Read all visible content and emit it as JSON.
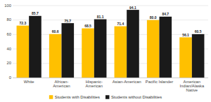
{
  "chart_data": {
    "type": "bar",
    "categories": [
      "White",
      "African-American",
      "Hispanic-American",
      "Asian-American",
      "Pacific Islander",
      "American\nIndian/Alaska\nNative"
    ],
    "series": [
      {
        "name": "Students with Disabilities",
        "color": "#FFC000",
        "values": [
          72.3,
          60.6,
          68.5,
          71.4,
          80.0,
          56.1
        ],
        "value_labels": [
          "72.3",
          "60.6",
          "68.5",
          "71.4",
          "80.0",
          "56.1"
        ]
      },
      {
        "name": "Students without Disabilities",
        "color": "#1A1A1A",
        "values": [
          85.7,
          75.7,
          81.1,
          94.1,
          84.7,
          60.5
        ]
      }
    ],
    "ylim": [
      0,
      100
    ],
    "yticks": [
      0,
      20,
      40,
      60,
      80,
      100
    ],
    "grid": true,
    "legend": "bottom",
    "data_labels": true
  }
}
